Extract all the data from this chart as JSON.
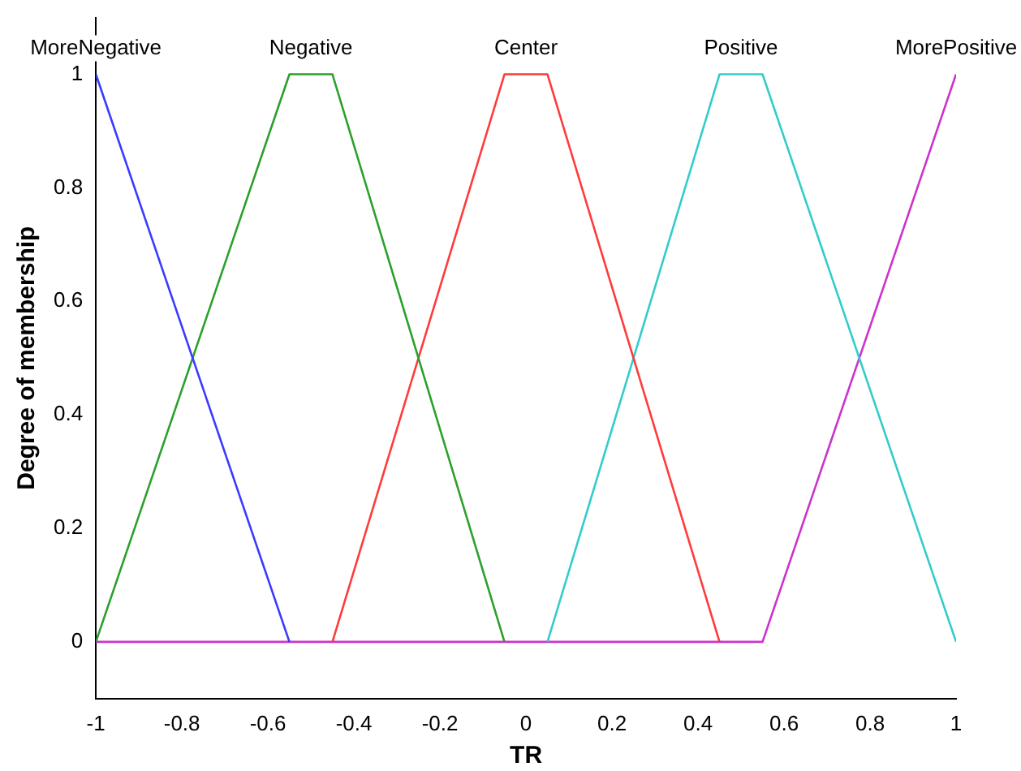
{
  "chart_data": {
    "type": "line",
    "xlabel": "TR",
    "ylabel": "Degree of membership",
    "xlim": [
      -1,
      1
    ],
    "xticks": [
      -1,
      -0.8,
      -0.6,
      -0.4,
      -0.2,
      0,
      0.2,
      0.4,
      0.6,
      0.8,
      1
    ],
    "ylim": [
      -0.1,
      1.1
    ],
    "yticks": [
      0,
      0.2,
      0.4,
      0.6,
      0.8,
      1
    ],
    "grid": false,
    "legend": false,
    "marker": "none",
    "line_style": "solid",
    "series": [
      {
        "name": "MoreNegative",
        "color": "#3b3bff",
        "x": [
          -1,
          -0.55
        ],
        "values": [
          1,
          0
        ]
      },
      {
        "name": "Negative",
        "color": "#2ca02c",
        "x": [
          -1,
          -0.55,
          -0.45,
          -0.05
        ],
        "values": [
          0,
          1,
          1,
          0
        ]
      },
      {
        "name": "Center",
        "color": "#ff3b3b",
        "x": [
          -0.45,
          -0.05,
          0.05,
          0.45
        ],
        "values": [
          0,
          1,
          1,
          0
        ]
      },
      {
        "name": "Positive",
        "color": "#33cccc",
        "x": [
          0.05,
          0.45,
          0.55,
          1
        ],
        "values": [
          0,
          1,
          1,
          0
        ]
      },
      {
        "name": "MorePositive",
        "color": "#cc33cc",
        "x": [
          -1,
          0.55,
          1
        ],
        "values": [
          0,
          0,
          1
        ]
      }
    ]
  }
}
